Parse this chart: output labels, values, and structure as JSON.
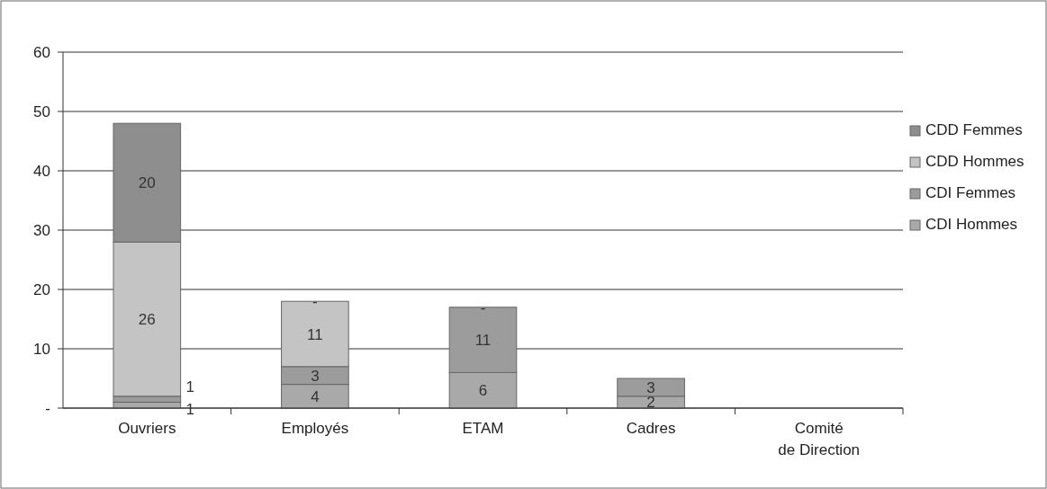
{
  "chart_data": {
    "type": "bar",
    "stacked": true,
    "categories": [
      "Ouvriers",
      "Employés",
      "ETAM",
      "Cadres",
      "Comité de Direction"
    ],
    "series": [
      {
        "name": "CDI Hommes",
        "color": "#a9a9a9",
        "values": [
          1,
          4,
          6,
          2,
          null
        ],
        "value_labels": [
          "1",
          "4",
          "6",
          "2",
          null
        ]
      },
      {
        "name": "CDI Femmes",
        "color": "#9c9c9c",
        "values": [
          1,
          3,
          11,
          3,
          null
        ],
        "value_labels": [
          "1",
          "3",
          "11",
          "3",
          null
        ]
      },
      {
        "name": "CDD Hommes",
        "color": "#c4c4c4",
        "values": [
          26,
          11,
          null,
          null,
          null
        ],
        "value_labels": [
          "26",
          "11",
          null,
          null,
          null
        ]
      },
      {
        "name": "CDD Femmes",
        "color": "#8e8e8e",
        "values": [
          20,
          0,
          0,
          null,
          null
        ],
        "value_labels": [
          "20",
          "-",
          "-",
          null,
          null
        ]
      }
    ],
    "ylim": [
      0,
      60
    ],
    "yticks": [
      {
        "value": 0,
        "label": "-"
      },
      10,
      20,
      30,
      40,
      50,
      60
    ],
    "grid": "y",
    "legend": "right"
  }
}
